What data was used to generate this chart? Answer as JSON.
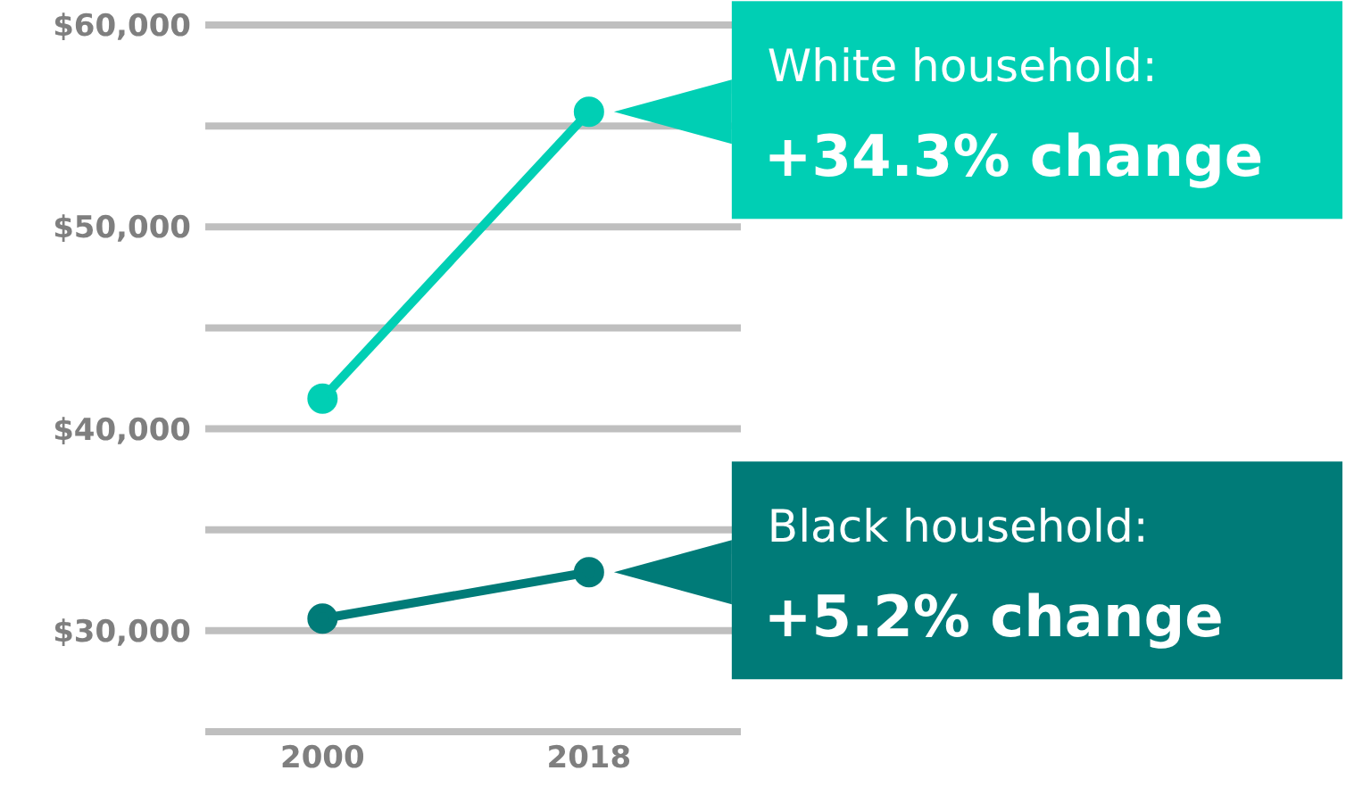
{
  "chart_data": {
    "type": "line",
    "categories": [
      "2000",
      "2018"
    ],
    "series": [
      {
        "name": "White household:",
        "color": "#00cfb4",
        "values": [
          41500,
          55700
        ]
      },
      {
        "name": "Black household:",
        "color": "#007b78",
        "values": [
          30600,
          32900
        ]
      }
    ],
    "annotations": [
      "+34.3% change",
      "+5.2% change"
    ],
    "ylim": [
      25000,
      60000
    ],
    "yticks": [
      {
        "value": 25000,
        "label": null
      },
      {
        "value": 30000,
        "label": "$30,000"
      },
      {
        "value": 35000,
        "label": null
      },
      {
        "value": 40000,
        "label": "$40,000"
      },
      {
        "value": 45000,
        "label": null
      },
      {
        "value": 50000,
        "label": "$50,000"
      },
      {
        "value": 55000,
        "label": null
      },
      {
        "value": 60000,
        "label": "$60,000"
      }
    ],
    "grid": "y",
    "marker": "circle"
  }
}
